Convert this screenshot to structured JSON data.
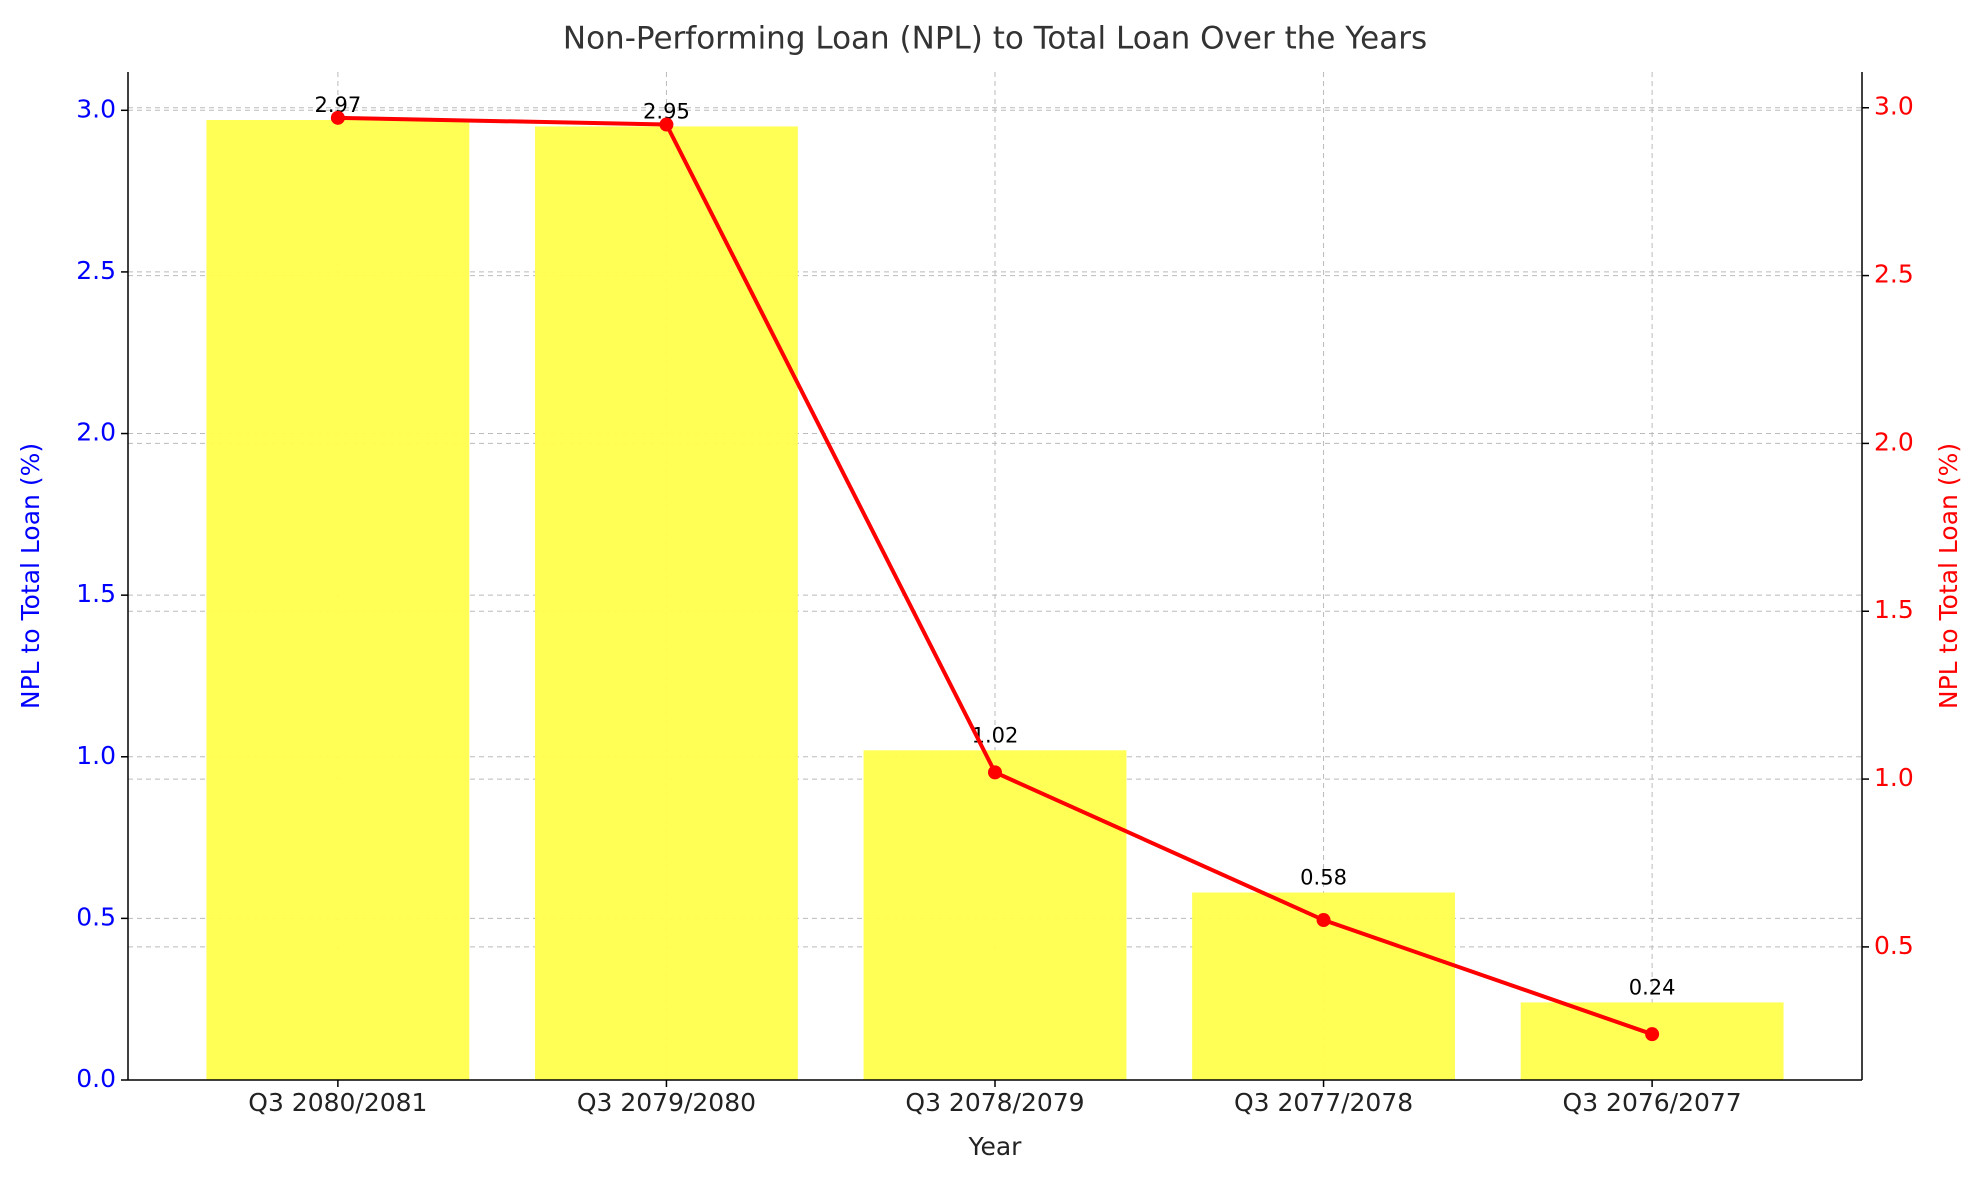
{
  "chart_data": {
    "type": "combo",
    "title": "Non-Performing Loan (NPL) to Total Loan Over the Years",
    "x_label": "Year",
    "y_label": "NPL to Total Loan (%)",
    "y2_label": "NPL to Total Loan (%)",
    "categories": [
      "Q3 2080/2081",
      "Q3 2079/2080",
      "Q3 2078/2079",
      "Q3 2077/2078",
      "Q3 2076/2077"
    ],
    "series": [
      {
        "type": "bar",
        "color": "#ffff4d",
        "values": [
          2.97,
          2.95,
          1.02,
          0.58,
          0.24
        ]
      },
      {
        "type": "line",
        "axis": "y2",
        "color": "#ff0000",
        "values": [
          2.97,
          2.95,
          1.02,
          0.58,
          0.24
        ]
      }
    ],
    "ylim": [
      0,
      3.1185
    ],
    "yticks": [
      {
        "value": 0,
        "label": "0.0"
      },
      {
        "value": 0.5,
        "label": "0.5"
      },
      {
        "value": 1,
        "label": "1.0"
      },
      {
        "value": 1.5,
        "label": "1.5"
      },
      {
        "value": 2,
        "label": "2.0"
      },
      {
        "value": 2.5,
        "label": "2.5"
      },
      {
        "value": 3,
        "label": "3.0"
      }
    ],
    "y2lim": [
      0.1035,
      3.1065
    ],
    "y2ticks": [
      {
        "value": 0.5,
        "label": "0.5"
      },
      {
        "value": 1,
        "label": "1.0"
      },
      {
        "value": 1.5,
        "label": "1.5"
      },
      {
        "value": 2,
        "label": "2.0"
      },
      {
        "value": 2.5,
        "label": "2.5"
      },
      {
        "value": 3,
        "label": "3.0"
      }
    ],
    "y_color": "#0000ff",
    "y2_color": "#ff0000",
    "grid": true
  }
}
